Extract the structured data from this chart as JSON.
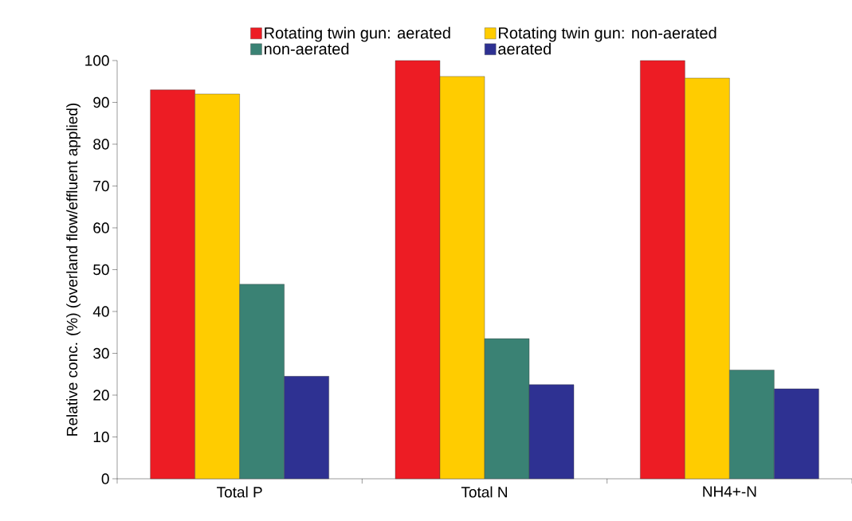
{
  "chart_data": {
    "type": "bar",
    "ylabel": "Relative conc. (%) (overland flow/effluent applied)",
    "categories": [
      "Total P",
      "Total N",
      "NH4+-N"
    ],
    "series": [
      {
        "name": "Rotating twin gun: aerated",
        "color": "#ed1c24",
        "values": [
          93,
          100,
          100
        ]
      },
      {
        "name": "Rotating twin gun: non-aerated",
        "color": "#ffcc00",
        "values": [
          92,
          96.2,
          95.8
        ]
      },
      {
        "name": "non-aerated",
        "color": "#3a8274",
        "values": [
          46.5,
          33.5,
          26
        ]
      },
      {
        "name": "aerated",
        "color": "#2e3192",
        "values": [
          24.5,
          22.5,
          21.5
        ]
      }
    ],
    "ylim": [
      0,
      100
    ],
    "yticks": [
      0,
      10,
      20,
      30,
      40,
      50,
      60,
      70,
      80,
      90,
      100
    ],
    "grid": false,
    "legend": "top"
  }
}
